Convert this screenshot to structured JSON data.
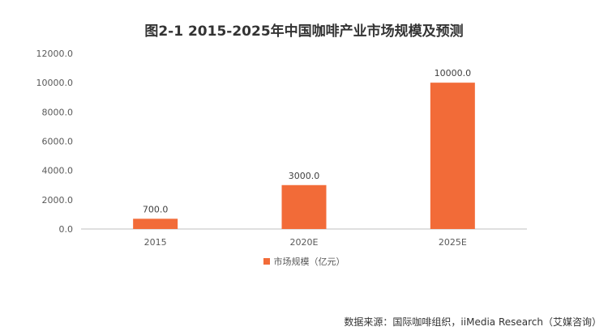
{
  "chart_data": {
    "type": "bar",
    "title": "图2-1 2015-2025年中国咖啡产业市场规模及预测",
    "categories": [
      "2015",
      "2020E",
      "2025E"
    ],
    "series": [
      {
        "name": "市场规模（亿元）",
        "values": [
          700.0,
          3000.0,
          10000.0
        ]
      }
    ],
    "data_labels": [
      "700.0",
      "3000.0",
      "10000.0"
    ],
    "ylim": [
      0,
      12000
    ],
    "yticks": [
      "0.0",
      "2000.0",
      "4000.0",
      "6000.0",
      "8000.0",
      "10000.0",
      "12000.0"
    ],
    "grid": false,
    "legend_position": "bottom",
    "bar_color": "#F26B38"
  },
  "source": "数据来源：国际咖啡组织，iiMedia Research（艾媒咨询）"
}
